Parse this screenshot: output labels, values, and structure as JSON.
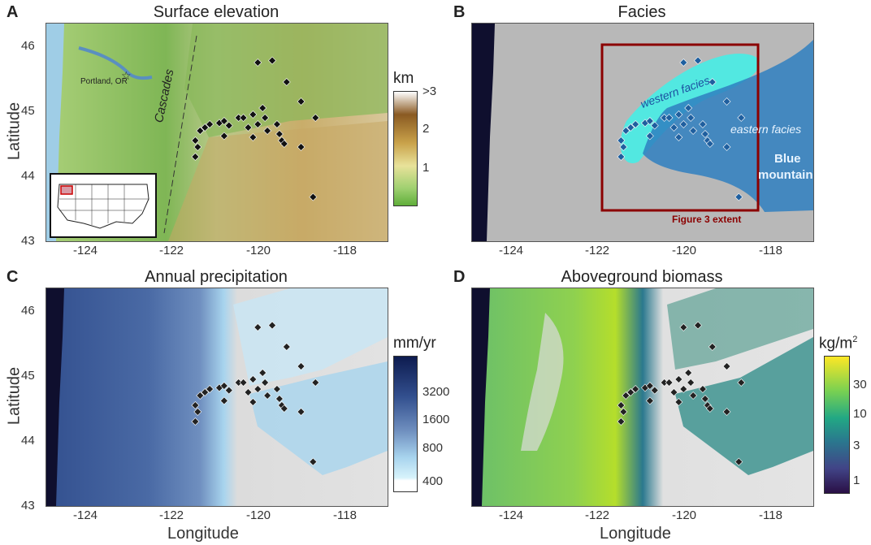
{
  "panels": {
    "a": {
      "letter": "A",
      "title": "Surface elevation"
    },
    "b": {
      "letter": "B",
      "title": "Facies"
    },
    "c": {
      "letter": "C",
      "title": "Annual precipitation"
    },
    "d": {
      "letter": "D",
      "title": "Aboveground biomass"
    }
  },
  "axes": {
    "longitude_label": "Longitude",
    "latitude_label": "Latitude",
    "lon_ticks": [
      "-124",
      "-122",
      "-120",
      "-118"
    ],
    "lat_ticks": [
      "46",
      "45",
      "44",
      "43"
    ]
  },
  "annotations": {
    "portland": "Portland, OR",
    "cascades": "Cascades",
    "western_facies": "western facies",
    "eastern_facies": "eastern facies",
    "blue_mountains_line1": "Blue",
    "blue_mountains_line2": "mountains",
    "figure3_extent": "Figure 3 extent"
  },
  "colorbars": {
    "elevation": {
      "title": "km",
      "ticks": [
        ">3",
        "2",
        "1"
      ],
      "colors": [
        "#ffffff",
        "#8a5a22",
        "#c9a24a",
        "#e8e29a",
        "#9fd070",
        "#5fae3a"
      ]
    },
    "precipitation": {
      "title": "mm/yr",
      "ticks": [
        "3200",
        "1600",
        "800",
        "400"
      ],
      "colors": [
        "#0d1b4f",
        "#33508f",
        "#6f8fbf",
        "#a8d4ee",
        "#d8f3fb",
        "#ffffff"
      ]
    },
    "biomass": {
      "title": "kg/m",
      "title_sup": "2",
      "ticks": [
        "30",
        "10",
        "3",
        "1"
      ],
      "colors": [
        "#fde725",
        "#7ad151",
        "#22a884",
        "#2a788e",
        "#414487",
        "#2a0f45"
      ]
    }
  },
  "colors": {
    "ocean": "#0f0f2e",
    "ocean_light": "#8fc8e8",
    "western_facies": "#3ff0e8",
    "eastern_facies": "#2f7fc0",
    "figure3_box": "#8b0000",
    "site_marker": "#111111"
  },
  "sites": [
    {
      "lon": -120.2,
      "lat": 45.75
    },
    {
      "lon": -119.9,
      "lat": 45.78
    },
    {
      "lon": -119.6,
      "lat": 45.45
    },
    {
      "lon": -121.5,
      "lat": 44.55
    },
    {
      "lon": -121.4,
      "lat": 44.7
    },
    {
      "lon": -121.3,
      "lat": 44.75
    },
    {
      "lon": -121.2,
      "lat": 44.8
    },
    {
      "lon": -121.0,
      "lat": 44.82
    },
    {
      "lon": -120.9,
      "lat": 44.85
    },
    {
      "lon": -120.8,
      "lat": 44.78
    },
    {
      "lon": -120.6,
      "lat": 44.9
    },
    {
      "lon": -120.5,
      "lat": 44.9
    },
    {
      "lon": -120.3,
      "lat": 44.95
    },
    {
      "lon": -120.1,
      "lat": 45.05
    },
    {
      "lon": -120.05,
      "lat": 44.9
    },
    {
      "lon": -120.2,
      "lat": 44.8
    },
    {
      "lon": -120.0,
      "lat": 44.7
    },
    {
      "lon": -119.8,
      "lat": 44.8
    },
    {
      "lon": -119.75,
      "lat": 44.65
    },
    {
      "lon": -119.7,
      "lat": 44.55
    },
    {
      "lon": -119.65,
      "lat": 44.5
    },
    {
      "lon": -120.3,
      "lat": 44.6
    },
    {
      "lon": -120.4,
      "lat": 44.75
    },
    {
      "lon": -121.5,
      "lat": 44.3
    },
    {
      "lon": -119.3,
      "lat": 44.45
    },
    {
      "lon": -119.0,
      "lat": 44.9
    },
    {
      "lon": -119.3,
      "lat": 45.15
    },
    {
      "lon": -119.05,
      "lat": 43.68
    },
    {
      "lon": -121.45,
      "lat": 44.45
    },
    {
      "lon": -120.9,
      "lat": 44.62
    }
  ]
}
